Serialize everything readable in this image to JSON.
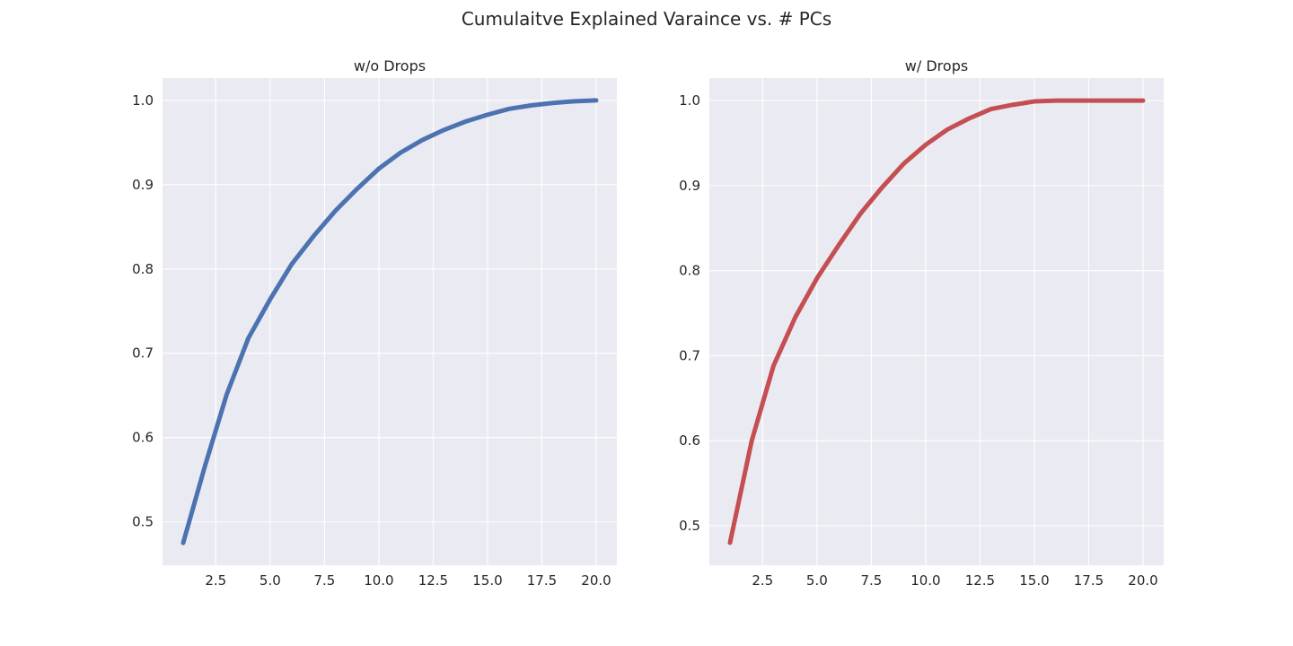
{
  "figure": {
    "title": "Cumulaitve Explained Varaince vs. # PCs"
  },
  "chart_data": [
    {
      "type": "line",
      "title": "w/o Drops",
      "xlabel": "",
      "ylabel": "",
      "xlim": [
        0.05,
        20.95
      ],
      "ylim": [
        0.4485,
        1.0265
      ],
      "xticks": [
        2.5,
        5.0,
        7.5,
        10.0,
        12.5,
        15.0,
        17.5,
        20.0
      ],
      "yticks": [
        0.5,
        0.6,
        0.7,
        0.8,
        0.9,
        1.0
      ],
      "grid": true,
      "series": [
        {
          "color": "#4c72b0",
          "x": [
            1,
            2,
            3,
            4,
            5,
            6,
            7,
            8,
            9,
            10,
            11,
            12,
            13,
            14,
            15,
            16,
            17,
            18,
            19,
            20
          ],
          "y": [
            0.475,
            0.566,
            0.651,
            0.718,
            0.764,
            0.806,
            0.839,
            0.869,
            0.895,
            0.919,
            0.938,
            0.953,
            0.965,
            0.975,
            0.983,
            0.99,
            0.994,
            0.997,
            0.999,
            1.0
          ]
        }
      ]
    },
    {
      "type": "line",
      "title": "w/ Drops",
      "xlabel": "",
      "ylabel": "",
      "xlim": [
        0.05,
        20.95
      ],
      "ylim": [
        0.4535,
        1.0265
      ],
      "xticks": [
        2.5,
        5.0,
        7.5,
        10.0,
        12.5,
        15.0,
        17.5,
        20.0
      ],
      "yticks": [
        0.5,
        0.6,
        0.7,
        0.8,
        0.9,
        1.0
      ],
      "grid": true,
      "series": [
        {
          "color": "#c44e52",
          "x": [
            1,
            2,
            3,
            4,
            5,
            6,
            7,
            8,
            9,
            10,
            11,
            12,
            13,
            14,
            15,
            16,
            17,
            18,
            19,
            20
          ],
          "y": [
            0.48,
            0.6,
            0.688,
            0.745,
            0.791,
            0.83,
            0.867,
            0.898,
            0.926,
            0.948,
            0.966,
            0.979,
            0.99,
            0.995,
            0.999,
            1.0,
            1.0,
            1.0,
            1.0,
            1.0
          ]
        }
      ]
    }
  ]
}
